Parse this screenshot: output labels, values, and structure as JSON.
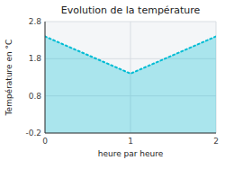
{
  "chart_data": {
    "type": "area",
    "title": "Evolution de la température",
    "xlabel": "heure par heure",
    "ylabel": "Température en °C",
    "x": [
      0,
      1,
      2
    ],
    "values": [
      2.4,
      1.4,
      2.4
    ],
    "color": "#00bcd4",
    "line_style": "dotted",
    "xlim": [
      0,
      2
    ],
    "ylim": [
      -0.2,
      2.8
    ],
    "xticks": [
      0,
      1,
      2
    ],
    "yticks": [
      -0.2,
      0.8,
      1.8,
      2.8
    ],
    "grid": true
  }
}
